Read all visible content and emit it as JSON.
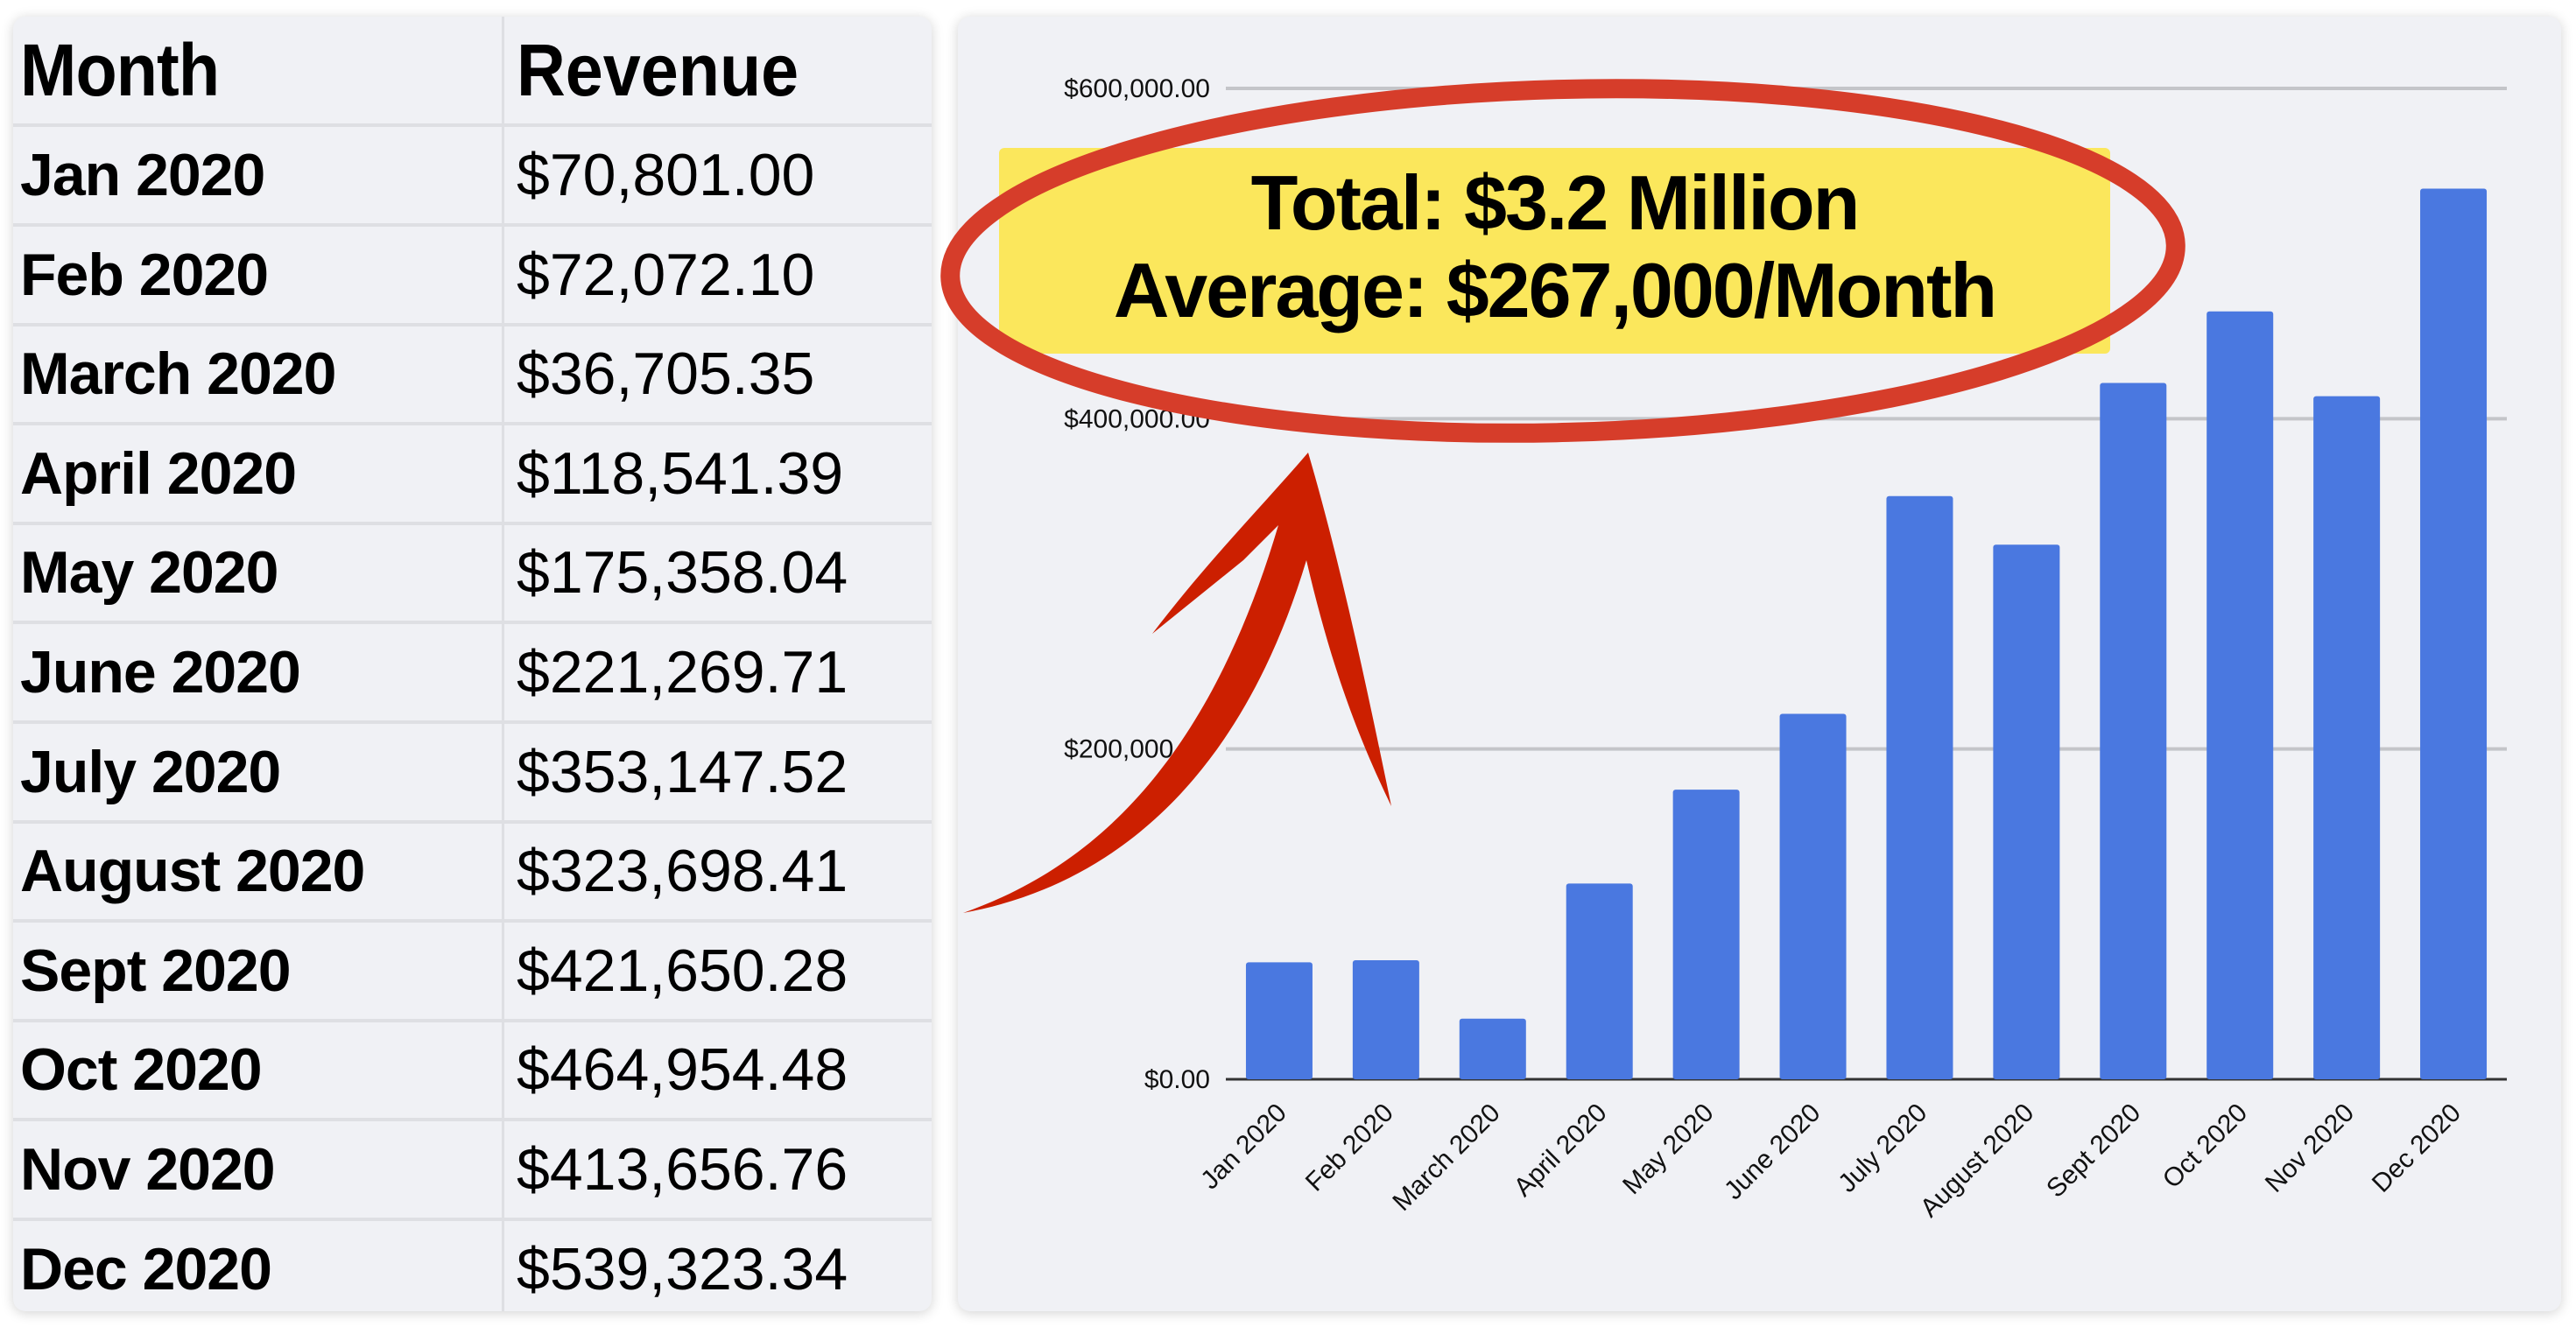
{
  "table": {
    "headers": [
      "Month",
      "Revenue"
    ],
    "rows": [
      {
        "month": "Jan 2020",
        "revenue": "$70,801.00"
      },
      {
        "month": "Feb 2020",
        "revenue": "$72,072.10"
      },
      {
        "month": "March 2020",
        "revenue": "$36,705.35"
      },
      {
        "month": "April 2020",
        "revenue": "$118,541.39"
      },
      {
        "month": "May 2020",
        "revenue": "$175,358.04"
      },
      {
        "month": "June 2020",
        "revenue": "$221,269.71"
      },
      {
        "month": "July 2020",
        "revenue": "$353,147.52"
      },
      {
        "month": "August 2020",
        "revenue": "$323,698.41"
      },
      {
        "month": "Sept 2020",
        "revenue": "$421,650.28"
      },
      {
        "month": "Oct 2020",
        "revenue": "$464,954.48"
      },
      {
        "month": "Nov 2020",
        "revenue": "$413,656.76"
      },
      {
        "month": "Dec 2020",
        "revenue": "$539,323.34"
      }
    ]
  },
  "callout": {
    "line1": "Total: $3.2 Million",
    "line2": "Average: $267,000/Month"
  },
  "colors": {
    "bar": "#4a78e0",
    "highlight": "#fbe75c",
    "circle": "#d63d2a",
    "arrow": "#cc1f00"
  },
  "chart_data": {
    "type": "bar",
    "title": "",
    "xlabel": "",
    "ylabel": "",
    "categories": [
      "Jan 2020",
      "Feb 2020",
      "March 2020",
      "April 2020",
      "May 2020",
      "June 2020",
      "July 2020",
      "August 2020",
      "Sept 2020",
      "Oct 2020",
      "Nov 2020",
      "Dec 2020"
    ],
    "values": [
      70801.0,
      72072.1,
      36705.35,
      118541.39,
      175358.04,
      221269.71,
      353147.52,
      323698.41,
      421650.28,
      464954.48,
      413656.76,
      539323.34
    ],
    "ylim": [
      0,
      600000
    ],
    "yticks": [
      0,
      200000,
      400000,
      600000
    ],
    "ytick_labels": [
      "$0.00",
      "$200,000.00",
      "$400,000.00",
      "$600,000.00"
    ],
    "grid": true,
    "legend": "none"
  }
}
